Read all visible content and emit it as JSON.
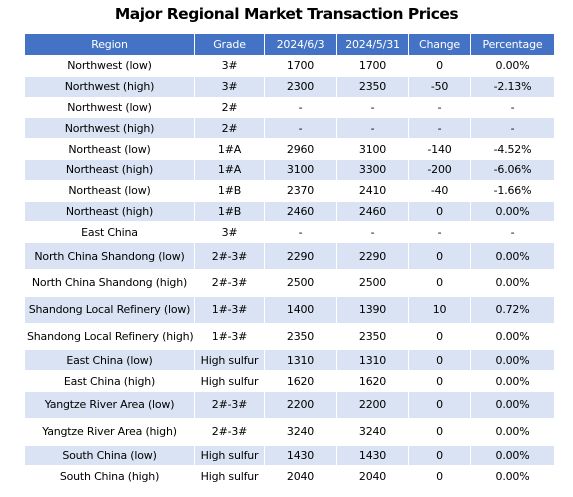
{
  "title": "Major Regional Market Transaction Prices",
  "columns": [
    "Region",
    "Grade",
    "2024/6/3",
    "2024/5/31",
    "Change",
    "Percentage"
  ],
  "rows": [
    [
      "Northwest (low)",
      "3#",
      "1700",
      "1700",
      "0",
      "0.00%"
    ],
    [
      "Northwest (high)",
      "3#",
      "2300",
      "2350",
      "-50",
      "-2.13%"
    ],
    [
      "Northwest (low)",
      "2#",
      "-",
      "-",
      "-",
      "-"
    ],
    [
      "Northwest (high)",
      "2#",
      "-",
      "-",
      "-",
      "-"
    ],
    [
      "Northeast (low)",
      "1#A",
      "2960",
      "3100",
      "-140",
      "-4.52%"
    ],
    [
      "Northeast (high)",
      "1#A",
      "3100",
      "3300",
      "-200",
      "-6.06%"
    ],
    [
      "Northeast (low)",
      "1#B",
      "2370",
      "2410",
      "-40",
      "-1.66%"
    ],
    [
      "Northeast (high)",
      "1#B",
      "2460",
      "2460",
      "0",
      "0.00%"
    ],
    [
      "East China",
      "3#",
      "-",
      "-",
      "-",
      "-"
    ],
    [
      "North China Shandong (low)",
      "2#-3#",
      "2290",
      "2290",
      "0",
      "0.00%"
    ],
    [
      "North China Shandong (high)",
      "2#-3#",
      "2500",
      "2500",
      "0",
      "0.00%"
    ],
    [
      "Shandong Local Refinery (low)",
      "1#-3#",
      "1400",
      "1390",
      "10",
      "0.72%"
    ],
    [
      "Shandong Local Refinery (high)",
      "1#-3#",
      "2350",
      "2350",
      "0",
      "0.00%"
    ],
    [
      "East China (low)",
      "High sulfur",
      "1310",
      "1310",
      "0",
      "0.00%"
    ],
    [
      "East China (high)",
      "High sulfur",
      "1620",
      "1620",
      "0",
      "0.00%"
    ],
    [
      "Yangtze River Area (low)",
      "2#-3#",
      "2200",
      "2200",
      "0",
      "0.00%"
    ],
    [
      "Yangtze River Area (high)",
      "2#-3#",
      "3240",
      "3240",
      "0",
      "0.00%"
    ],
    [
      "South China (low)",
      "High sulfur",
      "1430",
      "1430",
      "0",
      "0.00%"
    ],
    [
      "South China (high)",
      "High sulfur",
      "2040",
      "2040",
      "0",
      "0.00%"
    ]
  ]
}
